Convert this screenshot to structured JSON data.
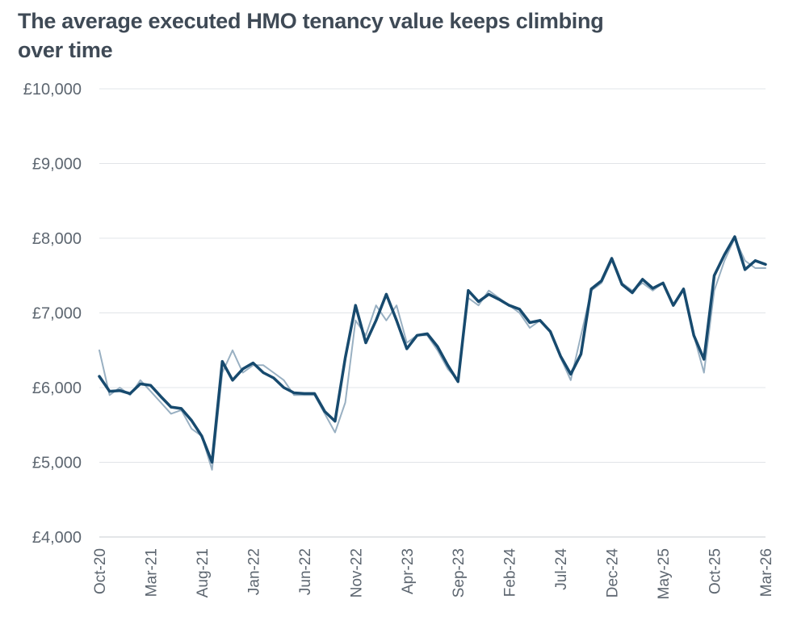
{
  "chart_data": {
    "type": "line",
    "title": "The average executed HMO tenancy value keeps climbing over time",
    "xlabel": "",
    "ylabel": "",
    "ylim": [
      4000,
      10000
    ],
    "y_ticks": [
      "£4,000",
      "£5,000",
      "£6,000",
      "£7,000",
      "£8,000",
      "£9,000",
      "£10,000"
    ],
    "y_tick_values": [
      4000,
      5000,
      6000,
      7000,
      8000,
      9000,
      10000
    ],
    "x_tick_labels": [
      "Oct-20",
      "Mar-21",
      "Aug-21",
      "Jan-22",
      "Jun-22",
      "Nov-22",
      "Apr-23",
      "Sep-23",
      "Feb-24",
      "Jul-24",
      "Dec-24",
      "May-25",
      "Oct-25",
      "Mar-26"
    ],
    "x_range": [
      "2020-10",
      "2026-03"
    ],
    "grid": "horizontal",
    "colors": {
      "daily": "#93acbf",
      "smoothed": "#174a6e",
      "grid": "#e1e4e8",
      "title": "#3f4a56",
      "tick": "#5d6670"
    },
    "series": [
      {
        "style": "daily",
        "x": [
          "2020-10",
          "2020-11",
          "2020-12",
          "2021-01",
          "2021-02",
          "2021-03",
          "2021-04",
          "2021-05",
          "2021-06",
          "2021-07",
          "2021-08",
          "2021-09",
          "2021-10",
          "2021-11",
          "2021-12",
          "2022-01",
          "2022-02",
          "2022-03",
          "2022-04",
          "2022-05",
          "2022-06",
          "2022-07",
          "2022-08",
          "2022-09",
          "2022-10",
          "2022-11",
          "2022-12",
          "2023-01",
          "2023-02",
          "2023-03",
          "2023-04",
          "2023-05",
          "2023-06",
          "2023-07",
          "2023-08",
          "2023-09",
          "2023-10",
          "2023-11",
          "2023-12",
          "2024-01",
          "2024-02",
          "2024-03",
          "2024-04",
          "2024-05",
          "2024-06",
          "2024-07",
          "2024-08",
          "2024-09",
          "2024-10",
          "2024-11",
          "2024-12",
          "2025-01",
          "2025-02",
          "2025-03",
          "2025-04",
          "2025-05",
          "2025-06",
          "2025-07",
          "2025-08",
          "2025-09",
          "2025-10",
          "2025-11",
          "2025-12",
          "2026-01",
          "2026-02",
          "2026-03"
        ],
        "values": [
          6500,
          5900,
          6000,
          5900,
          6100,
          5950,
          5800,
          5650,
          5700,
          5450,
          5350,
          4900,
          6200,
          6500,
          6200,
          6300,
          6300,
          6200,
          6100,
          5900,
          5900,
          5900,
          5650,
          5400,
          5800,
          6900,
          6700,
          7100,
          6900,
          7100,
          6600,
          6700,
          6700,
          6500,
          6250,
          6100,
          7200,
          7100,
          7300,
          7200,
          7100,
          7000,
          6800,
          6900,
          6750,
          6400,
          6100,
          6700,
          7300,
          7400,
          7700,
          7400,
          7300,
          7400,
          7300,
          7400,
          7100,
          7300,
          6700,
          6200,
          7300,
          7700,
          8000,
          7700,
          7600,
          7600
        ]
      },
      {
        "style": "smoothed",
        "x": [
          "2020-10",
          "2020-11",
          "2020-12",
          "2021-01",
          "2021-02",
          "2021-03",
          "2021-04",
          "2021-05",
          "2021-06",
          "2021-07",
          "2021-08",
          "2021-09",
          "2021-10",
          "2021-11",
          "2021-12",
          "2022-01",
          "2022-02",
          "2022-03",
          "2022-04",
          "2022-05",
          "2022-06",
          "2022-07",
          "2022-08",
          "2022-09",
          "2022-10",
          "2022-11",
          "2022-12",
          "2023-01",
          "2023-02",
          "2023-03",
          "2023-04",
          "2023-05",
          "2023-06",
          "2023-07",
          "2023-08",
          "2023-09",
          "2023-10",
          "2023-11",
          "2023-12",
          "2024-01",
          "2024-02",
          "2024-03",
          "2024-04",
          "2024-05",
          "2024-06",
          "2024-07",
          "2024-08",
          "2024-09",
          "2024-10",
          "2024-11",
          "2024-12",
          "2025-01",
          "2025-02",
          "2025-03",
          "2025-04",
          "2025-05",
          "2025-06",
          "2025-07",
          "2025-08",
          "2025-09",
          "2025-10",
          "2025-11",
          "2025-12",
          "2026-01",
          "2026-02",
          "2026-03"
        ],
        "values": [
          6150,
          5950,
          5960,
          5920,
          6050,
          6030,
          5880,
          5740,
          5720,
          5560,
          5350,
          5000,
          6350,
          6100,
          6250,
          6330,
          6200,
          6130,
          6000,
          5930,
          5920,
          5920,
          5680,
          5550,
          6400,
          7100,
          6600,
          6900,
          7250,
          6900,
          6520,
          6700,
          6720,
          6550,
          6300,
          6080,
          7300,
          7150,
          7250,
          7180,
          7100,
          7050,
          6870,
          6900,
          6750,
          6420,
          6180,
          6450,
          7320,
          7430,
          7730,
          7380,
          7270,
          7450,
          7330,
          7400,
          7100,
          7320,
          6700,
          6380,
          7500,
          7780,
          8020,
          7580,
          7700,
          7650
        ]
      }
    ]
  }
}
